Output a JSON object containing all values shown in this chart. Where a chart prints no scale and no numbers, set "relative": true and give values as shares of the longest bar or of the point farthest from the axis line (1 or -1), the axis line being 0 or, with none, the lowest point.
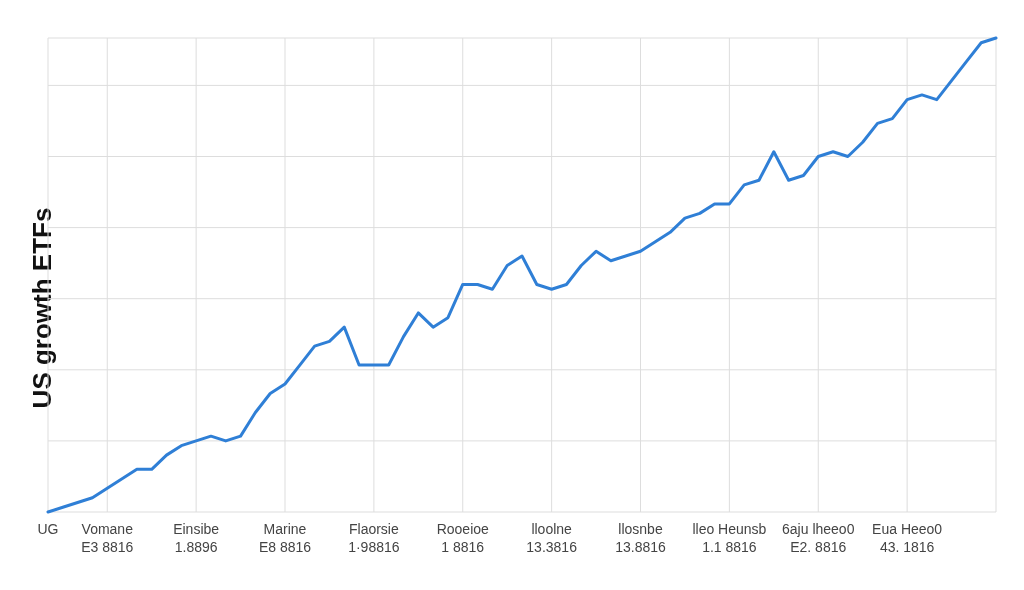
{
  "chart_data": {
    "type": "line",
    "ylabel": "US growth ETFs",
    "relative": true,
    "grid": true,
    "marker": "none",
    "line_style": "solid",
    "categories": [
      "UG",
      null,
      null,
      null,
      "Vomane\nE3 8816",
      null,
      null,
      null,
      null,
      null,
      "Einsibe\n1.8896",
      null,
      null,
      null,
      null,
      null,
      "Marine\nE8 8816",
      null,
      null,
      null,
      null,
      null,
      "Flaorsie\n1·98816",
      null,
      null,
      null,
      null,
      null,
      "Rooeioe\n1 8816",
      null,
      null,
      null,
      null,
      null,
      "lloolne\n13.3816",
      null,
      null,
      null,
      null,
      null,
      "llosnbe\n13.8816",
      null,
      null,
      null,
      null,
      null,
      "lleo Heunsb\n1.1 8816",
      null,
      null,
      null,
      null,
      null,
      "6aju lheeo0\nE2. 8816",
      null,
      null,
      null,
      null,
      null,
      "Eua Heeo0\n43. 1816",
      null,
      null,
      null,
      null,
      null,
      null
    ],
    "series": [
      {
        "color": "#2f7fd6",
        "values": [
          0,
          0.01,
          0.02,
          0.03,
          0.05,
          0.07,
          0.09,
          0.09,
          0.12,
          0.14,
          0.15,
          0.16,
          0.15,
          0.16,
          0.21,
          0.25,
          0.27,
          0.31,
          0.35,
          0.36,
          0.39,
          0.31,
          0.31,
          0.31,
          0.37,
          0.42,
          0.39,
          0.41,
          0.48,
          0.48,
          0.47,
          0.52,
          0.54,
          0.48,
          0.47,
          0.48,
          0.52,
          0.55,
          0.53,
          0.54,
          0.55,
          0.57,
          0.59,
          0.62,
          0.63,
          0.65,
          0.65,
          0.69,
          0.7,
          0.76,
          0.7,
          0.71,
          0.75,
          0.76,
          0.75,
          0.78,
          0.82,
          0.83,
          0.87,
          0.88,
          0.87,
          0.91,
          0.95,
          0.99,
          1
        ]
      }
    ]
  }
}
